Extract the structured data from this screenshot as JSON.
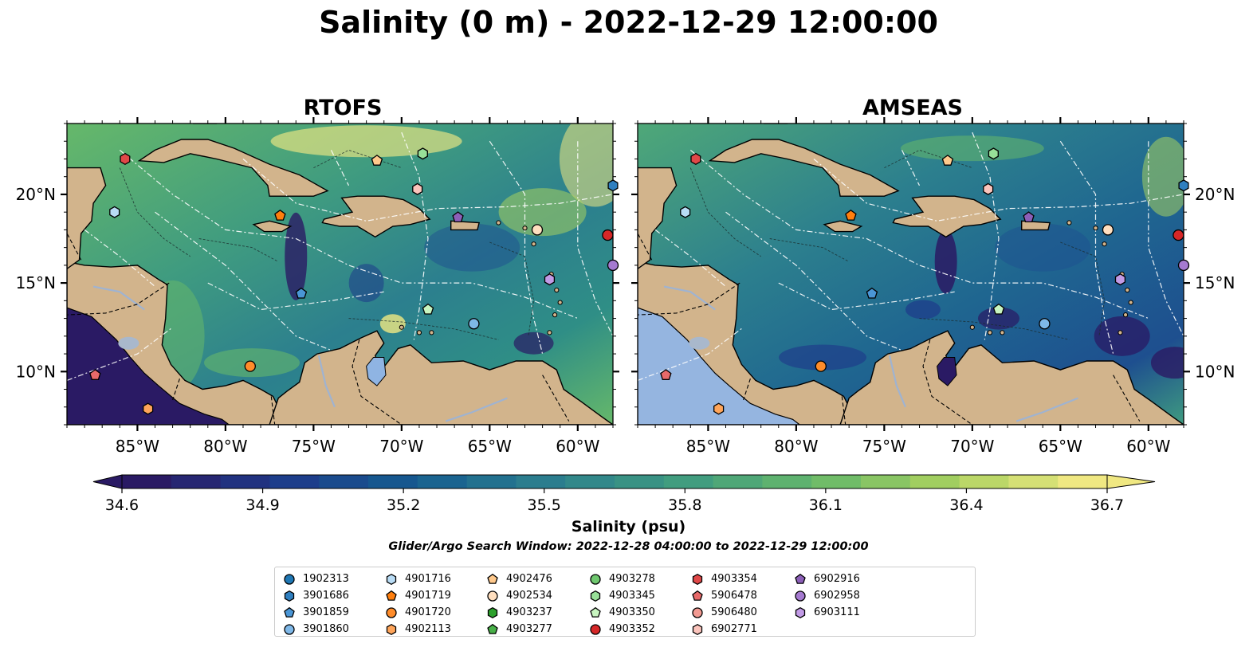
{
  "title": "Salinity (0 m) - 2022-12-29 12:00:00",
  "panels": [
    {
      "title": "RTOFS"
    },
    {
      "title": "AMSEAS"
    }
  ],
  "chart_data": {
    "type": "heatmap",
    "map_extent": {
      "lon": [
        -89,
        -58
      ],
      "lat": [
        7,
        24
      ]
    },
    "x_ticks": [
      "85°W",
      "80°W",
      "75°W",
      "70°W",
      "65°W",
      "60°W"
    ],
    "y_ticks": [
      "20°N",
      "15°N",
      "10°N"
    ],
    "colorbar": {
      "label": "Salinity (psu)",
      "ticks": [
        "34.6",
        "34.9",
        "35.2",
        "35.5",
        "35.8",
        "36.1",
        "36.4",
        "36.7"
      ],
      "range": [
        34.6,
        36.7
      ],
      "colors": [
        "#2a1a64",
        "#1e3a8a",
        "#155d90",
        "#2c7f8e",
        "#3f9b80",
        "#66b86a",
        "#a8d15f",
        "#f0e882"
      ]
    },
    "search_window": "Glider/Argo Search Window: 2022-12-28 04:00:00 to 2022-12-29 12:00:00",
    "floats": [
      {
        "id": "1902313",
        "marker": "circle",
        "color": "#1f77b4"
      },
      {
        "id": "3901686",
        "marker": "hexagon",
        "color": "#2f7fc0"
      },
      {
        "id": "3901859",
        "marker": "pentagon",
        "color": "#4a96d6"
      },
      {
        "id": "3901860",
        "marker": "circle",
        "color": "#7fb8e8"
      },
      {
        "id": "4901716",
        "marker": "hexagon",
        "color": "#b9dcf5"
      },
      {
        "id": "4901719",
        "marker": "pentagon",
        "color": "#ff7f0e"
      },
      {
        "id": "4901720",
        "marker": "circle",
        "color": "#ff8c2a"
      },
      {
        "id": "4902113",
        "marker": "hexagon",
        "color": "#ffa55a"
      },
      {
        "id": "4902476",
        "marker": "pentagon",
        "color": "#ffc98c"
      },
      {
        "id": "4902534",
        "marker": "circle",
        "color": "#ffdfbf"
      },
      {
        "id": "4903237",
        "marker": "hexagon",
        "color": "#2ca02c"
      },
      {
        "id": "4903277",
        "marker": "pentagon",
        "color": "#48b048"
      },
      {
        "id": "4903278",
        "marker": "circle",
        "color": "#6fc86f"
      },
      {
        "id": "4903345",
        "marker": "hexagon",
        "color": "#98e098"
      },
      {
        "id": "4903350",
        "marker": "pentagon",
        "color": "#c8f5c0"
      },
      {
        "id": "4903352",
        "marker": "circle",
        "color": "#d62728"
      },
      {
        "id": "4903354",
        "marker": "hexagon",
        "color": "#e04848"
      },
      {
        "id": "5906478",
        "marker": "pentagon",
        "color": "#e86a6a"
      },
      {
        "id": "5906480",
        "marker": "circle",
        "color": "#f29a92"
      },
      {
        "id": "6902771",
        "marker": "hexagon",
        "color": "#fbc4bc"
      },
      {
        "id": "6902916",
        "marker": "pentagon",
        "color": "#8c5fb8"
      },
      {
        "id": "6902958",
        "marker": "circle",
        "color": "#a57ad0"
      },
      {
        "id": "6903111",
        "marker": "hexagon",
        "color": "#c29be6"
      }
    ],
    "float_positions": [
      {
        "id": "4903354",
        "lon": -85.7,
        "lat": 22.0
      },
      {
        "id": "4902476",
        "lon": -71.4,
        "lat": 21.9
      },
      {
        "id": "4903345",
        "lon": -68.8,
        "lat": 22.3
      },
      {
        "id": "3901686",
        "lon": -58.0,
        "lat": 20.5
      },
      {
        "id": "6902771",
        "lon": -69.1,
        "lat": 20.3
      },
      {
        "id": "4901716",
        "lon": -86.3,
        "lat": 19.0
      },
      {
        "id": "4901719",
        "lon": -76.9,
        "lat": 18.8
      },
      {
        "id": "6902916",
        "lon": -66.8,
        "lat": 18.7
      },
      {
        "id": "4902534",
        "lon": -62.3,
        "lat": 18.0
      },
      {
        "id": "4903352",
        "lon": -58.3,
        "lat": 17.7
      },
      {
        "id": "6902958",
        "lon": -58.0,
        "lat": 16.0
      },
      {
        "id": "6903111",
        "lon": -61.6,
        "lat": 15.2
      },
      {
        "id": "3901859",
        "lon": -75.7,
        "lat": 14.4
      },
      {
        "id": "4903350",
        "lon": -68.5,
        "lat": 13.5
      },
      {
        "id": "3901860",
        "lon": -65.9,
        "lat": 12.7
      },
      {
        "id": "4901720",
        "lon": -78.6,
        "lat": 10.3
      },
      {
        "id": "5906478",
        "lon": -87.4,
        "lat": 9.8
      },
      {
        "id": "4902113",
        "lon": -84.4,
        "lat": 7.9
      }
    ]
  }
}
